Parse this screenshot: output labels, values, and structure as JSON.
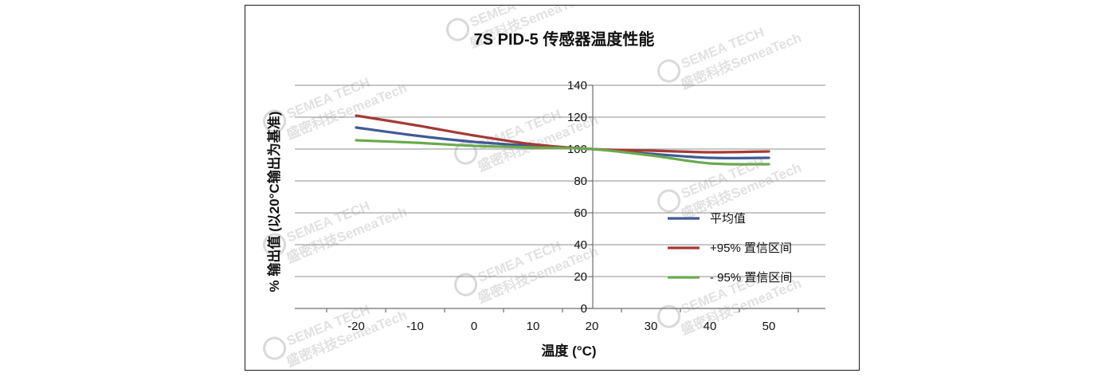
{
  "chart_data": {
    "type": "line",
    "title": "7S PID-5  传感器温度性能",
    "xlabel": "温度 (°C)",
    "ylabel": "% 输出值 (以20°C输出为基准)",
    "xlim": [
      -30,
      60
    ],
    "ylim": [
      0,
      140
    ],
    "xticks": [
      -20,
      -10,
      0,
      10,
      20,
      30,
      40,
      50
    ],
    "yticks": [
      0,
      20,
      40,
      60,
      80,
      100,
      120,
      140
    ],
    "grid": true,
    "legend_position": "right",
    "series": [
      {
        "name": "平均值",
        "color": "#3f5a96",
        "x": [
          -20,
          -10,
          0,
          10,
          20,
          30,
          40,
          50
        ],
        "y": [
          113.5,
          108.5,
          104.5,
          102,
          100,
          97,
          94.5,
          94.5
        ]
      },
      {
        "name": "+95% 置信区间",
        "color": "#a43a35",
        "x": [
          -20,
          -10,
          0,
          10,
          20,
          30,
          40,
          50
        ],
        "y": [
          121,
          115,
          108.5,
          103,
          100,
          99,
          98,
          98.5
        ]
      },
      {
        "name": "- 95% 置信区间",
        "color": "#6aaa4c",
        "x": [
          -20,
          -10,
          0,
          10,
          20,
          30,
          40,
          50
        ],
        "y": [
          105.5,
          104,
          102,
          101,
          100,
          96,
          91,
          90.5
        ]
      }
    ]
  },
  "watermark": {
    "logo_text": "SEMEA TECH",
    "text": "盛密科技SemeaTech"
  }
}
